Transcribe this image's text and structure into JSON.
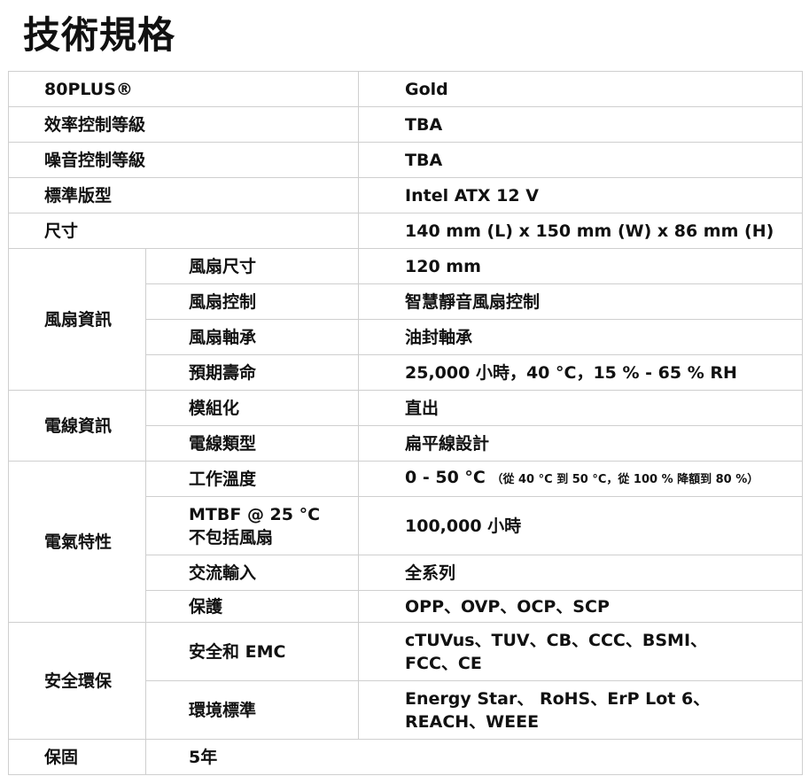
{
  "title": "技術規格",
  "rows": {
    "r0": {
      "label": "80PLUS®",
      "value": "Gold"
    },
    "r1": {
      "label": "效率控制等級",
      "value": "TBA"
    },
    "r2": {
      "label": "噪音控制等級",
      "value": "TBA"
    },
    "r3": {
      "label": "標準版型",
      "value": "Intel ATX 12 V"
    },
    "r4": {
      "label": "尺寸",
      "value": "140 mm (L) x 150 mm (W) x 86 mm (H)"
    }
  },
  "groups": {
    "fan": {
      "label": "風扇資訊",
      "items": [
        {
          "label": "風扇尺寸",
          "value": "120 mm"
        },
        {
          "label": "風扇控制",
          "value": "智慧靜音風扇控制"
        },
        {
          "label": "風扇軸承",
          "value": "油封軸承"
        },
        {
          "label": "預期壽命",
          "value": "25,000 小時，40 °C，15 % - 65 % RH"
        }
      ]
    },
    "cable": {
      "label": "電線資訊",
      "items": [
        {
          "label": "模組化",
          "value": "直出"
        },
        {
          "label": "電線類型",
          "value": "扁平線設計"
        }
      ]
    },
    "elec": {
      "label": "電氣特性",
      "items": [
        {
          "label": "工作溫度",
          "value": "0 - 50 °C",
          "note": "（從 40 °C 到 50 °C，從 100 % 降額到 80 %）"
        },
        {
          "label": "MTBF @ 25 °C",
          "label2": "不包括風扇",
          "value": "100,000 小時"
        },
        {
          "label": "交流輸入",
          "value": "全系列"
        },
        {
          "label": "保護",
          "value": "OPP、OVP、OCP、SCP"
        }
      ]
    },
    "safety": {
      "label": "安全環保",
      "items": [
        {
          "label": "安全和 EMC",
          "value": "cTUVus、TUV、CB、CCC、BSMI、",
          "value2": "FCC、CE"
        },
        {
          "label": "環境標準",
          "value": "Energy Star、 RoHS、ErP Lot 6、",
          "value2": "REACH、WEEE"
        }
      ]
    }
  },
  "warranty": {
    "label": "保固",
    "value": "5年"
  }
}
